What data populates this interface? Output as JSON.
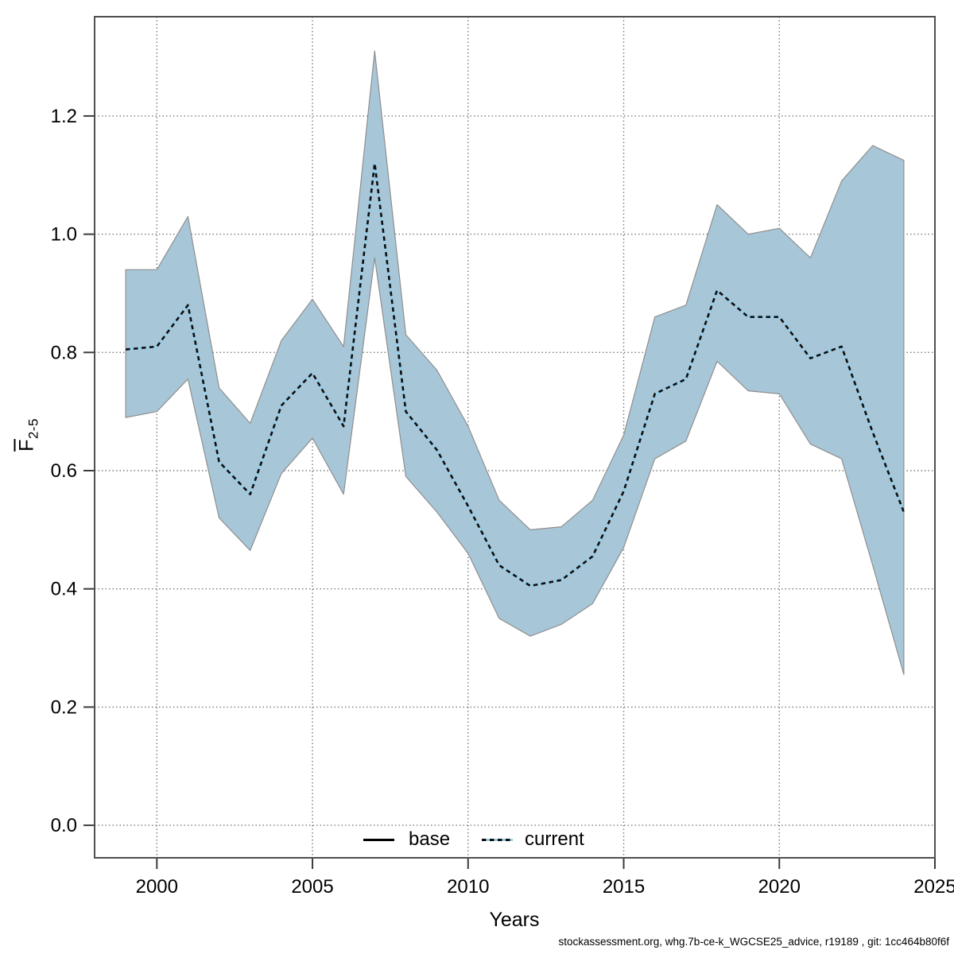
{
  "page": {
    "background": "#ffffff"
  },
  "axes": {
    "x_title": "Years",
    "y_title_letter": "F",
    "y_title_subscript": "2-5",
    "x_tick_labels": [
      "2000",
      "2005",
      "2010",
      "2015",
      "2020",
      "2025"
    ],
    "y_tick_labels": [
      "0.0",
      "0.2",
      "0.4",
      "0.6",
      "0.8",
      "1.0",
      "1.2"
    ]
  },
  "legend": {
    "base_label": "base",
    "current_label": "current"
  },
  "footer": {
    "text": "stockassessment.org, whg.7b-ce-k_WGCSE25_advice, r19189 , git: 1cc464b80f6f"
  },
  "colors": {
    "band_fill": "#a7c6d8",
    "band_edge": "#8f8f8f",
    "current_line_core": "#93cde9",
    "current_line_dash": "#0e0e0e",
    "base_line": "#000000",
    "grid": "#7b7b7b",
    "frame": "#4f4f4f",
    "tick": "#3c3c3c",
    "text": "#000000"
  },
  "chart_data": {
    "type": "line",
    "title": "",
    "xlabel": "Years",
    "ylabel": "Fbar 2-5",
    "xlim": [
      1998,
      2025
    ],
    "ylim": [
      -0.055,
      1.368
    ],
    "x_ticks": [
      2000,
      2005,
      2010,
      2015,
      2020,
      2025
    ],
    "y_ticks": [
      0.0,
      0.2,
      0.4,
      0.6,
      0.8,
      1.0,
      1.2
    ],
    "grid": true,
    "legend_entries": [
      "base",
      "current"
    ],
    "legend_position": "bottom-center",
    "x": [
      1999,
      2000,
      2001,
      2002,
      2003,
      2004,
      2005,
      2006,
      2007,
      2008,
      2009,
      2010,
      2011,
      2012,
      2013,
      2014,
      2015,
      2016,
      2017,
      2018,
      2019,
      2020,
      2021,
      2022,
      2023,
      2024
    ],
    "series": [
      {
        "name": "current",
        "style": "black-dashed-over-lightblue",
        "values": [
          0.805,
          0.81,
          0.88,
          0.615,
          0.56,
          0.71,
          0.765,
          0.675,
          1.12,
          0.7,
          0.635,
          0.54,
          0.44,
          0.405,
          0.415,
          0.455,
          0.565,
          0.73,
          0.755,
          0.905,
          0.86,
          0.86,
          0.79,
          0.81,
          0.665,
          0.53
        ]
      }
    ],
    "confidence_band": {
      "lower": [
        0.69,
        0.7,
        0.755,
        0.52,
        0.465,
        0.595,
        0.655,
        0.56,
        0.96,
        0.59,
        0.53,
        0.46,
        0.35,
        0.32,
        0.34,
        0.375,
        0.47,
        0.62,
        0.65,
        0.785,
        0.735,
        0.73,
        0.645,
        0.62,
        0.44,
        0.255
      ],
      "upper": [
        0.94,
        0.94,
        1.03,
        0.74,
        0.68,
        0.82,
        0.89,
        0.81,
        1.31,
        0.83,
        0.77,
        0.675,
        0.55,
        0.5,
        0.505,
        0.55,
        0.66,
        0.86,
        0.88,
        1.05,
        1.0,
        1.01,
        0.96,
        1.09,
        1.15,
        1.125
      ]
    }
  }
}
